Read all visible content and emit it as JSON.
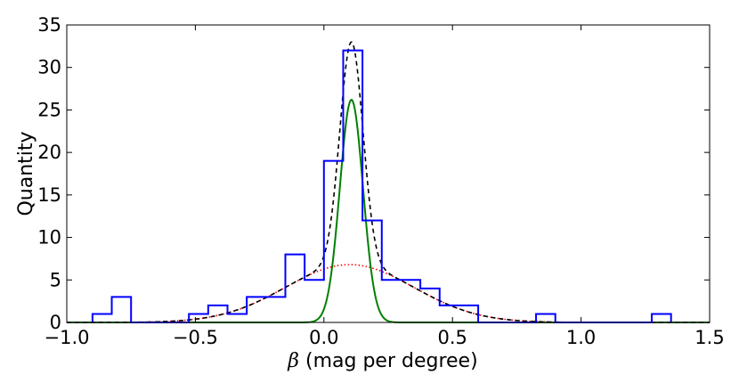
{
  "chart_data": {
    "type": "histogram",
    "xlabel_symbol": "β",
    "xlabel_text": " (mag per degree)",
    "ylabel": "Quantity",
    "xlim": [
      -1.0,
      1.5
    ],
    "ylim": [
      0,
      35
    ],
    "xticks": [
      "−1.0",
      "−0.5",
      "0.0",
      "0.5",
      "1.0",
      "1.5"
    ],
    "xtick_values": [
      -1.0,
      -0.5,
      0.0,
      0.5,
      1.0,
      1.5
    ],
    "yticks": [
      "0",
      "5",
      "10",
      "15",
      "20",
      "25",
      "30",
      "35"
    ],
    "ytick_values": [
      0,
      5,
      10,
      15,
      20,
      25,
      30,
      35
    ],
    "grid": false,
    "histogram": {
      "color": "#0000ff",
      "bin_edges": [
        -0.9,
        -0.825,
        -0.75,
        -0.675,
        -0.6,
        -0.525,
        -0.45,
        -0.375,
        -0.3,
        -0.225,
        -0.15,
        -0.075,
        0.0,
        0.075,
        0.15,
        0.225,
        0.3,
        0.375,
        0.45,
        0.525,
        0.6,
        0.675,
        0.75,
        0.825,
        0.9,
        0.975,
        1.05,
        1.125,
        1.2,
        1.275,
        1.35
      ],
      "counts": [
        1,
        3,
        0,
        0,
        0,
        1,
        2,
        1,
        3,
        3,
        8,
        5,
        19,
        32,
        12,
        5,
        5,
        4,
        2,
        2,
        0,
        0,
        0,
        1,
        0,
        0,
        0,
        0,
        0,
        1
      ]
    },
    "curves": [
      {
        "style": "narrow-gaussian",
        "color": "#008000",
        "dash": "",
        "amplitude": 26.2,
        "mean": 0.107,
        "sigma": 0.045
      },
      {
        "style": "broad-gaussian",
        "color": "#ff0000",
        "dash": "1.5,2.5",
        "amplitude": 6.8,
        "mean": 0.1,
        "sigma": 0.25
      },
      {
        "style": "sum",
        "color": "#000000",
        "dash": "5,4",
        "components": [
          0,
          1
        ]
      }
    ]
  }
}
